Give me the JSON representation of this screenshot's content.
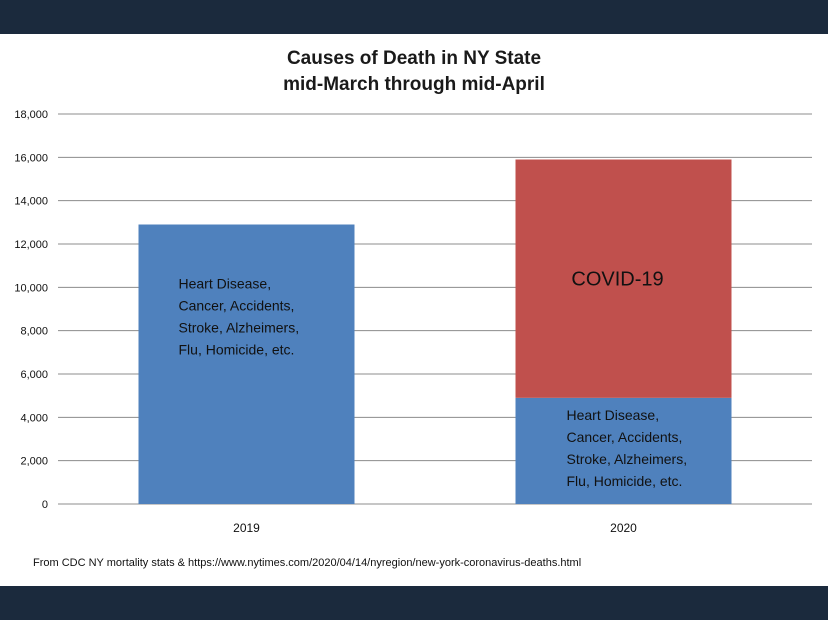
{
  "chart_data": {
    "type": "bar",
    "stacked": true,
    "title": [
      "Causes of Death in NY State",
      "mid-March through mid-April"
    ],
    "categories": [
      "2019",
      "2020"
    ],
    "ylim": [
      0,
      18000
    ],
    "yticks": [
      "0",
      "2,000",
      "4,000",
      "6,000",
      "8,000",
      "10,000",
      "12,000",
      "14,000",
      "16,000",
      "18,000"
    ],
    "grid": true,
    "series": [
      {
        "key": "other",
        "color": "#4f81bd",
        "values": [
          12900,
          4900
        ],
        "bar_labels": [
          [
            "Heart Disease,",
            "Cancer, Accidents,",
            "Stroke, Alzheimers,",
            "Flu, Homicide, etc."
          ],
          [
            "Heart Disease,",
            "Cancer, Accidents,",
            "Stroke, Alzheimers,",
            "Flu, Homicide, etc."
          ]
        ]
      },
      {
        "key": "covid",
        "color": "#c0504d",
        "values": [
          0,
          11000
        ],
        "bar_labels": [
          [],
          [
            "COVID-19"
          ]
        ]
      }
    ]
  },
  "footer": {
    "source": "From CDC NY mortality stats & https://www.nytimes.com/2020/04/14/nyregion/new-york-coronavirus-deaths.html"
  },
  "colors": {
    "frame": "#1b2a3d",
    "gridline": "#8c8c8c"
  }
}
